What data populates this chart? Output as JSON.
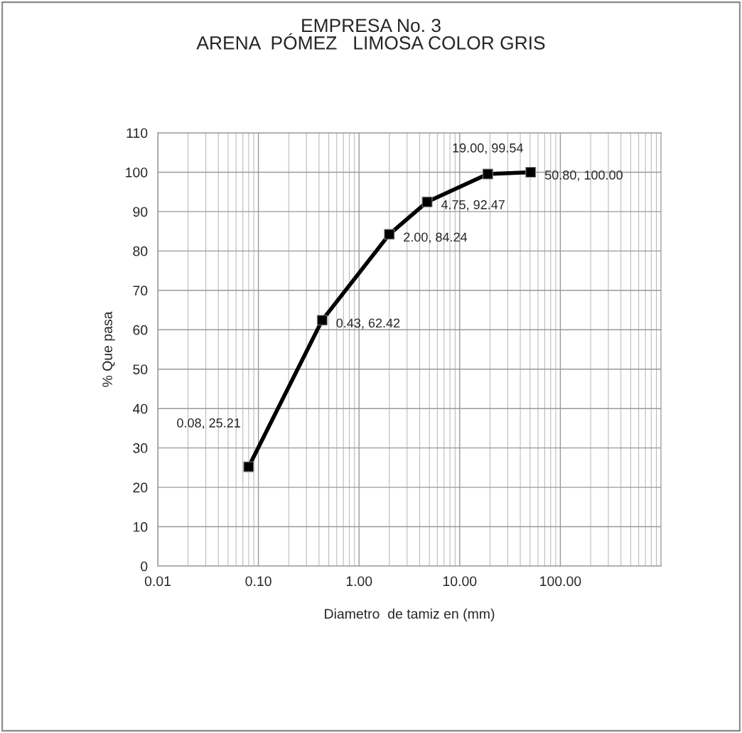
{
  "chart_data": {
    "type": "line",
    "title": "EMPRESA No. 3\nARENA  PÓMEZ   LIMOSA COLOR GRIS",
    "xlabel": "Diametro  de tamiz en (mm)",
    "ylabel": "% Que pasa",
    "x": [
      0.08,
      0.43,
      2.0,
      4.75,
      19.0,
      50.8
    ],
    "series": [
      {
        "color": "#000000",
        "values": [
          25.21,
          62.42,
          84.24,
          92.47,
          99.54,
          100.0
        ]
      }
    ],
    "value_labels": [
      "0.08, 25.21",
      "0.43, 62.42",
      "2.00, 84.24",
      "4.75, 92.47",
      "19.00, 99.54",
      "50.80, 100.00"
    ],
    "log": "x",
    "xlim": [
      0.01,
      1000
    ],
    "xticks": [
      {
        "value": 0.01,
        "label": "0.01"
      },
      {
        "value": 0.1,
        "label": "0.10"
      },
      {
        "value": 1,
        "label": "1.00"
      },
      {
        "value": 10,
        "label": "10.00"
      },
      {
        "value": 100,
        "label": "100.00"
      }
    ],
    "ylim": [
      0,
      110
    ],
    "yticks": [
      0,
      10,
      20,
      30,
      40,
      50,
      60,
      70,
      80,
      90,
      100,
      110
    ],
    "grid": true,
    "marker": "square",
    "line_style": "solid"
  }
}
